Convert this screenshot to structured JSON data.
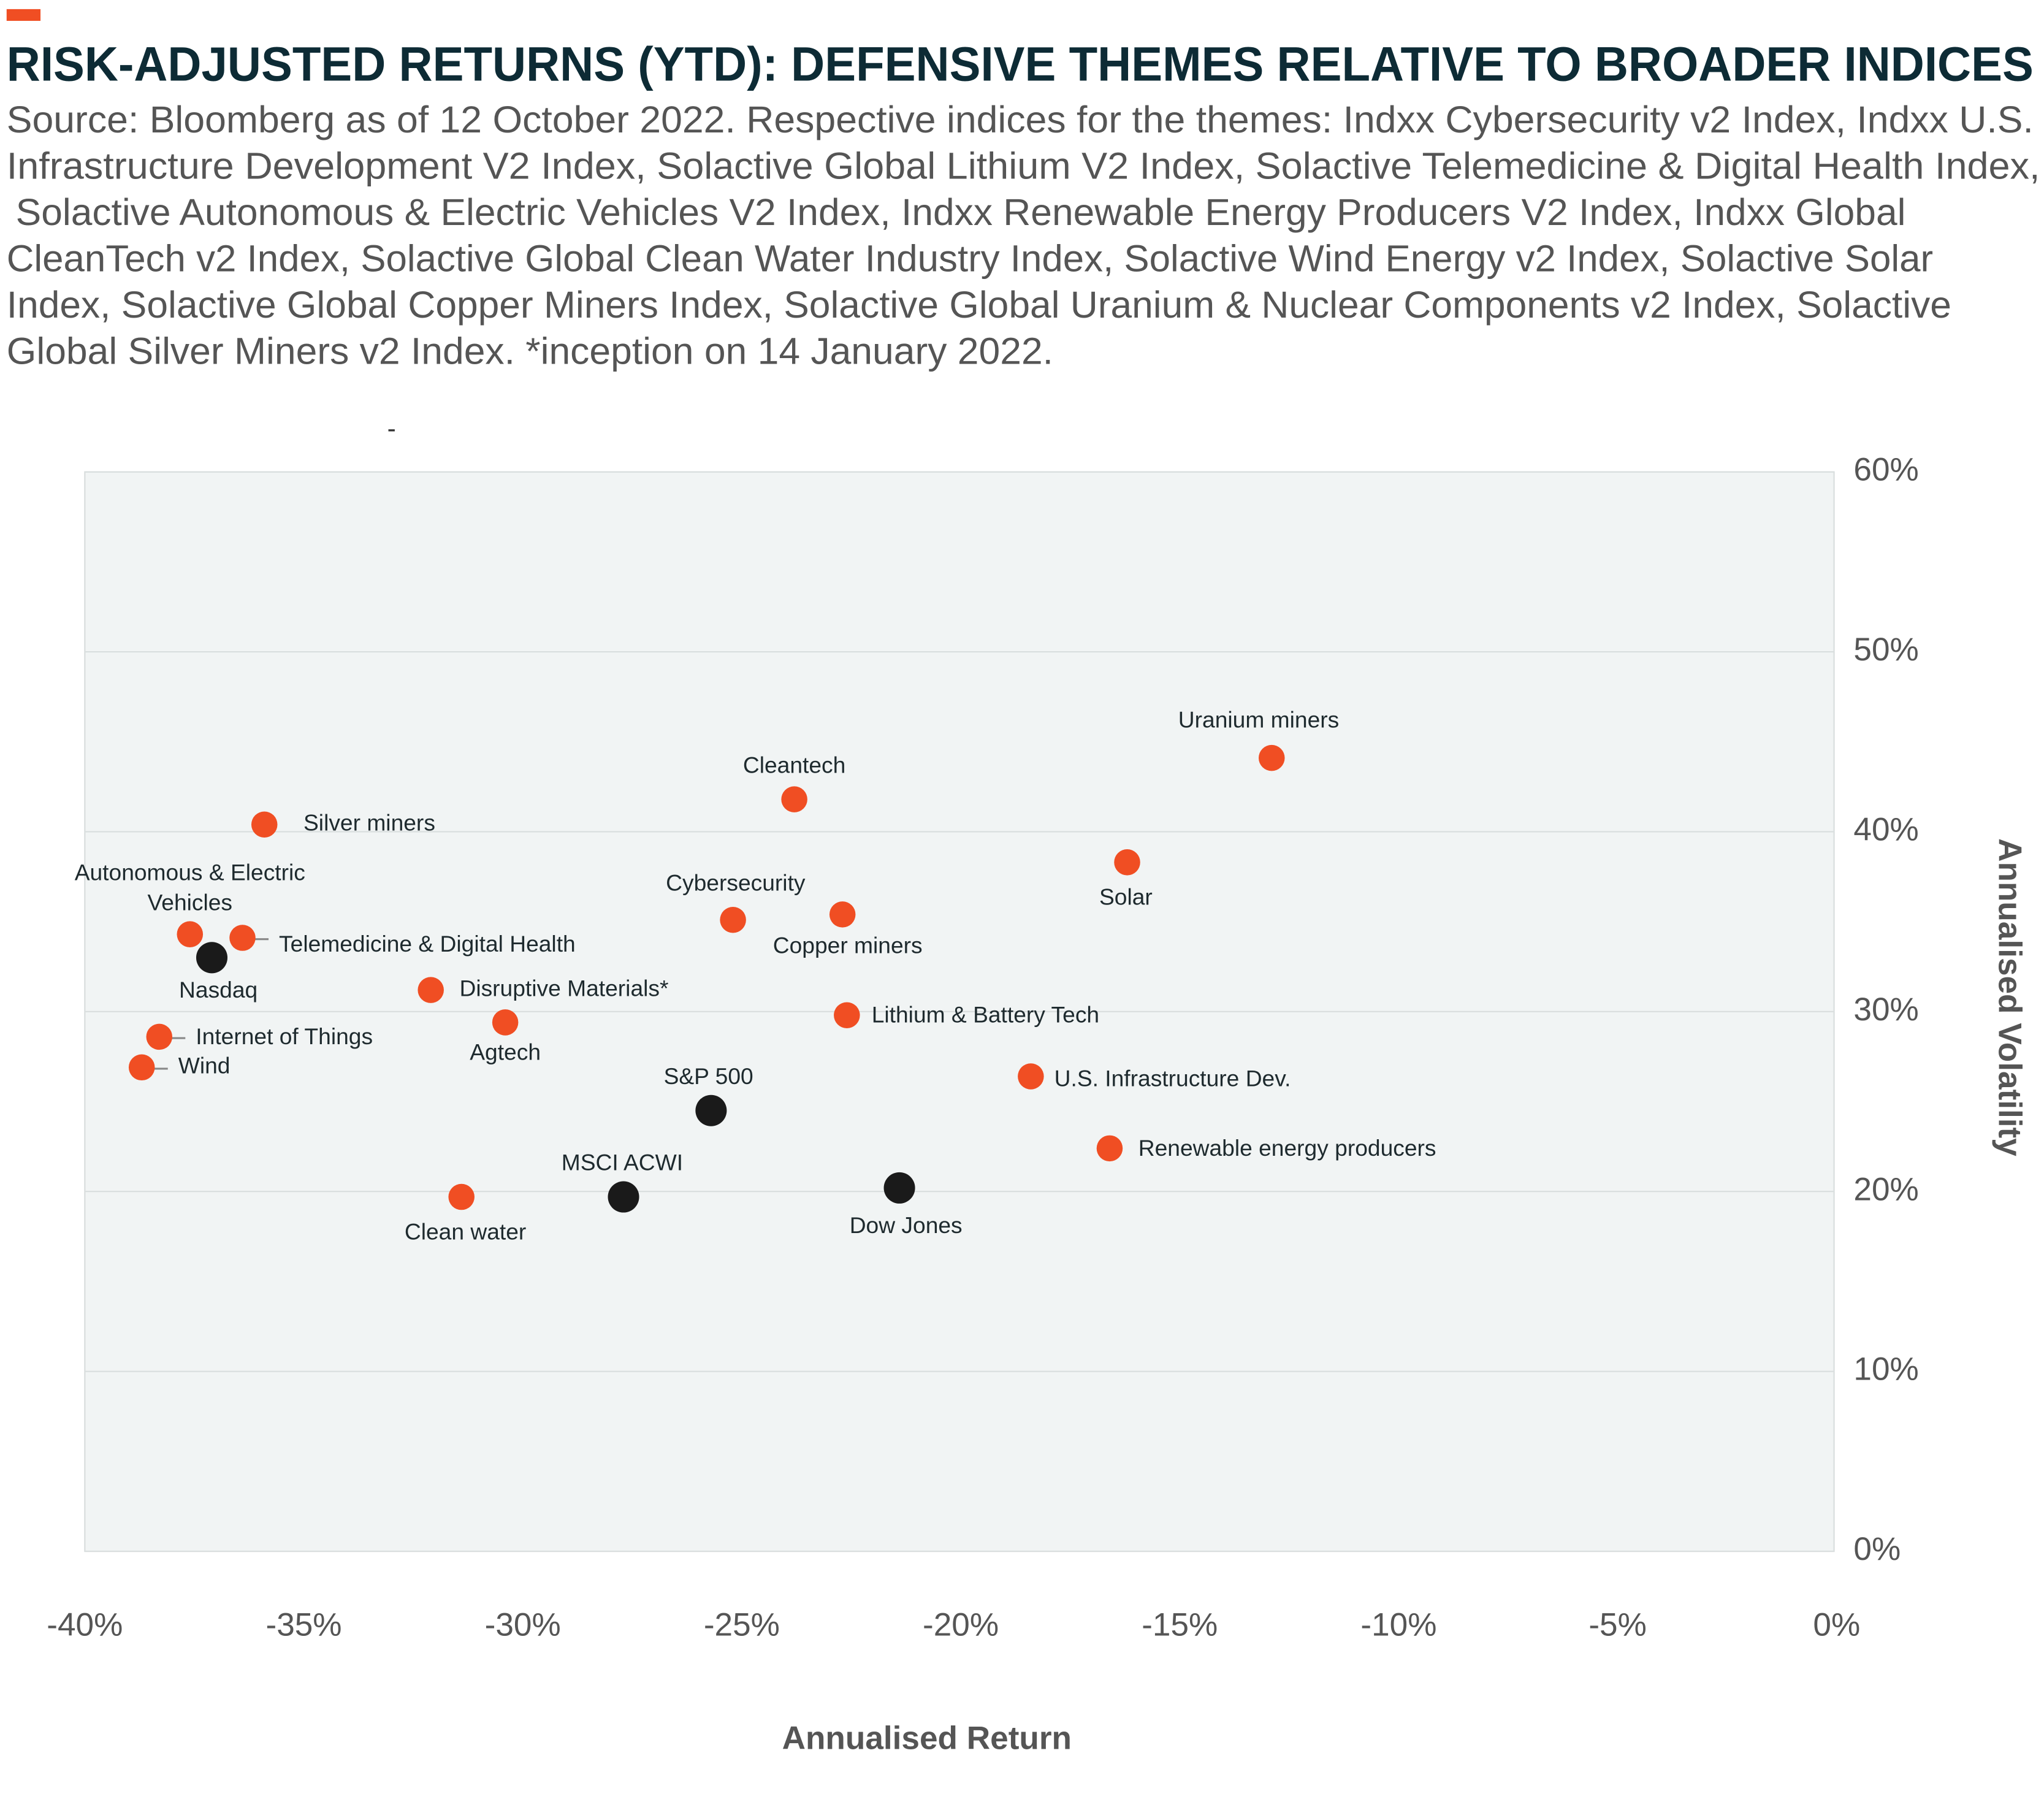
{
  "chart_data": {
    "type": "scatter",
    "title": "RISK-ADJUSTED RETURNS (YTD): DEFENSIVE THEMES RELATIVE TO BROADER INDICES",
    "subtitle": [
      "Source: Bloomberg as of 12 October 2022. Respective indices for the themes: Indxx Cybersecurity v2 Index, Indxx U.S.",
      "Infrastructure Development V2 Index, Solactive Global Lithium V2 Index, Solactive Telemedicine & Digital Health Index,",
      "Solactive Autonomous & Electric Vehicles V2 Index, Indxx Renewable Energy Producers V2 Index, Indxx Global",
      "CleanTech v2 Index, Solactive Global Clean Water Industry Index, Solactive Wind Energy v2 Index, Solactive Solar",
      "Index, Solactive Global Copper Miners Index, Solactive Global Uranium & Nuclear Components v2 Index, Solactive",
      "Global Silver Miners v2 Index. *inception on 14 January 2022."
    ],
    "annotation": "-",
    "x_label": "Annualised Return",
    "y_label": "Annualised Volatility",
    "xlim": [
      -40,
      0
    ],
    "ylim": [
      0,
      60
    ],
    "xticks": [
      {
        "value": -40,
        "label": "-40%"
      },
      {
        "value": -35,
        "label": "-35%"
      },
      {
        "value": -30,
        "label": "-30%"
      },
      {
        "value": -25,
        "label": "-25%"
      },
      {
        "value": -20,
        "label": "-20%"
      },
      {
        "value": -15,
        "label": "-15%"
      },
      {
        "value": -10,
        "label": "-10%"
      },
      {
        "value": -5,
        "label": "-5%"
      },
      {
        "value": 0,
        "label": "0%"
      }
    ],
    "yticks": [
      {
        "value": 0,
        "label": "0%"
      },
      {
        "value": 10,
        "label": "10%"
      },
      {
        "value": 20,
        "label": "20%"
      },
      {
        "value": 30,
        "label": "30%"
      },
      {
        "value": 40,
        "label": "40%"
      },
      {
        "value": 50,
        "label": "50%"
      },
      {
        "value": 60,
        "label": "60%"
      }
    ],
    "grid": true,
    "y_axis_side": "right",
    "series": [
      {
        "color": "#f04e23",
        "labels": [
          "Silver miners",
          "Uranium miners",
          "Cleantech",
          "Solar",
          "Cybersecurity",
          "Copper miners",
          [
            "Autonomous & Electric",
            "Vehicles"
          ],
          "Telemedicine & Digital Health",
          "Disruptive Materials*",
          "Agtech",
          "Lithium & Battery Tech",
          "Internet of Things",
          "Wind",
          "U.S. Infrastructure Dev.",
          "Renewable energy producers",
          "Clean water"
        ],
        "x": [
          -35.9,
          -12.9,
          -23.8,
          -16.2,
          -25.2,
          -22.7,
          -37.6,
          -36.4,
          -32.1,
          -30.4,
          -22.6,
          -38.3,
          -38.7,
          -18.4,
          -16.6,
          -31.4
        ],
        "y": [
          40.4,
          44.1,
          41.8,
          38.3,
          35.1,
          35.4,
          34.3,
          34.1,
          31.2,
          29.4,
          29.8,
          28.6,
          26.9,
          26.4,
          22.4,
          19.7
        ]
      },
      {
        "color": "#1a1a1a",
        "labels": [
          "Nasdaq",
          "S&P 500",
          "MSCI ACWI",
          "Dow Jones"
        ],
        "x": [
          -37.1,
          -25.7,
          -27.7,
          -21.4
        ],
        "y": [
          33.0,
          24.5,
          19.7,
          20.2
        ]
      }
    ]
  }
}
